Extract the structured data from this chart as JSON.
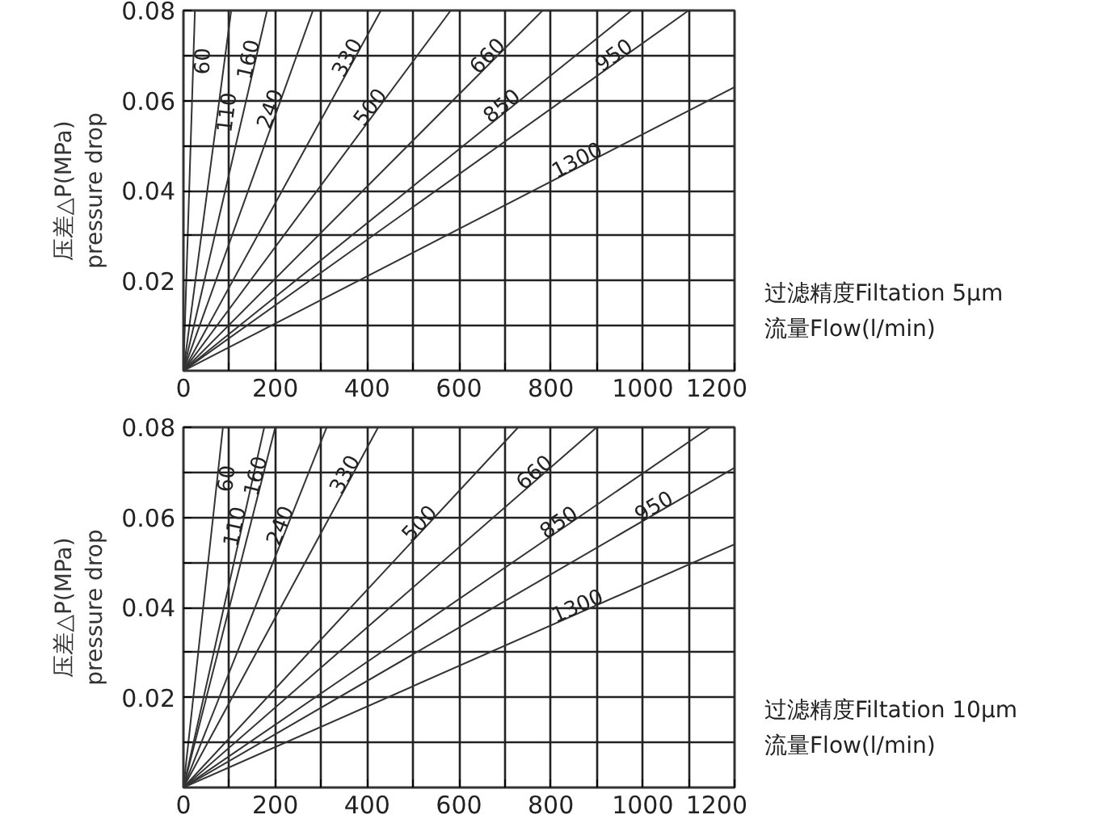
{
  "chart_data": [
    {
      "type": "line",
      "xlabel": "流量Flow(l/min)",
      "ylabel": "压差△P(MPa)\npressure drop",
      "annotations": [
        "过滤精度Filtation 5μm"
      ],
      "xlim": [
        0,
        1200
      ],
      "ylim": [
        0,
        0.08
      ],
      "grid": true,
      "line_style": "solid",
      "xticks": [
        0,
        {
          "value": 100,
          "label": null
        },
        200,
        {
          "value": 300,
          "label": null
        },
        400,
        {
          "value": 500,
          "label": null
        },
        600,
        {
          "value": 700,
          "label": null
        },
        800,
        {
          "value": 900,
          "label": null
        },
        1000,
        {
          "value": 1100,
          "label": null
        },
        1200
      ],
      "yticks": [
        {
          "value": 0.01,
          "label": null
        },
        0.02,
        {
          "value": 0.03,
          "label": null
        },
        0.04,
        {
          "value": 0.05,
          "label": null
        },
        0.06,
        {
          "value": 0.07,
          "label": null
        },
        0.08
      ],
      "series": [
        {
          "name": "60",
          "color": "#333333",
          "x": [
            0,
            25
          ],
          "values": [
            0,
            0.08
          ]
        },
        {
          "name": "110",
          "color": "#333333",
          "x": [
            0,
            104
          ],
          "values": [
            0,
            0.08
          ]
        },
        {
          "name": "160",
          "color": "#333333",
          "x": [
            0,
            182
          ],
          "values": [
            0,
            0.08
          ]
        },
        {
          "name": "240",
          "color": "#333333",
          "x": [
            0,
            282
          ],
          "values": [
            0,
            0.08
          ]
        },
        {
          "name": "330",
          "color": "#333333",
          "x": [
            0,
            430
          ],
          "values": [
            0,
            0.08
          ]
        },
        {
          "name": "500",
          "color": "#333333",
          "x": [
            0,
            582
          ],
          "values": [
            0,
            0.08
          ]
        },
        {
          "name": "660",
          "color": "#333333",
          "x": [
            0,
            782
          ],
          "values": [
            0,
            0.08
          ]
        },
        {
          "name": "850",
          "color": "#333333",
          "x": [
            0,
            976
          ],
          "values": [
            0,
            0.08
          ]
        },
        {
          "name": "950",
          "color": "#333333",
          "x": [
            0,
            1100
          ],
          "values": [
            0,
            0.08
          ]
        },
        {
          "name": "1300",
          "color": "#333333",
          "x": [
            0,
            1200
          ],
          "values": [
            0,
            0.063
          ]
        }
      ]
    },
    {
      "type": "line",
      "xlabel": "流量Flow(l/min)",
      "ylabel": "压差△P(MPa)\npressure drop",
      "annotations": [
        "过滤精度Filtation 10μm"
      ],
      "xlim": [
        0,
        1200
      ],
      "ylim": [
        0,
        0.08
      ],
      "grid": true,
      "line_style": "solid",
      "xticks": [
        0,
        {
          "value": 100,
          "label": null
        },
        200,
        {
          "value": 300,
          "label": null
        },
        400,
        {
          "value": 500,
          "label": null
        },
        600,
        {
          "value": 700,
          "label": null
        },
        800,
        {
          "value": 900,
          "label": null
        },
        1000,
        {
          "value": 1100,
          "label": null
        },
        1200
      ],
      "yticks": [
        {
          "value": 0.01,
          "label": null
        },
        0.02,
        {
          "value": 0.03,
          "label": null
        },
        0.04,
        {
          "value": 0.05,
          "label": null
        },
        0.06,
        {
          "value": 0.07,
          "label": null
        },
        0.08
      ],
      "series": [
        {
          "name": "60",
          "color": "#333333",
          "x": [
            0,
            86
          ],
          "values": [
            0,
            0.08
          ]
        },
        {
          "name": "110",
          "color": "#333333",
          "x": [
            0,
            176
          ],
          "values": [
            0,
            0.08
          ]
        },
        {
          "name": "160",
          "color": "#333333",
          "x": [
            0,
            200
          ],
          "values": [
            0,
            0.08
          ]
        },
        {
          "name": "240",
          "color": "#333333",
          "x": [
            0,
            312
          ],
          "values": [
            0,
            0.08
          ]
        },
        {
          "name": "330",
          "color": "#333333",
          "x": [
            0,
            424
          ],
          "values": [
            0,
            0.08
          ]
        },
        {
          "name": "500",
          "color": "#333333",
          "x": [
            0,
            729
          ],
          "values": [
            0,
            0.08
          ]
        },
        {
          "name": "660",
          "color": "#333333",
          "x": [
            0,
            900
          ],
          "values": [
            0,
            0.08
          ]
        },
        {
          "name": "850",
          "color": "#333333",
          "x": [
            0,
            1147
          ],
          "values": [
            0,
            0.08
          ]
        },
        {
          "name": "950",
          "color": "#333333",
          "x": [
            0,
            1200
          ],
          "values": [
            0,
            0.071
          ]
        },
        {
          "name": "1300",
          "color": "#333333",
          "x": [
            0,
            1200
          ],
          "values": [
            0,
            0.054
          ]
        }
      ]
    }
  ]
}
